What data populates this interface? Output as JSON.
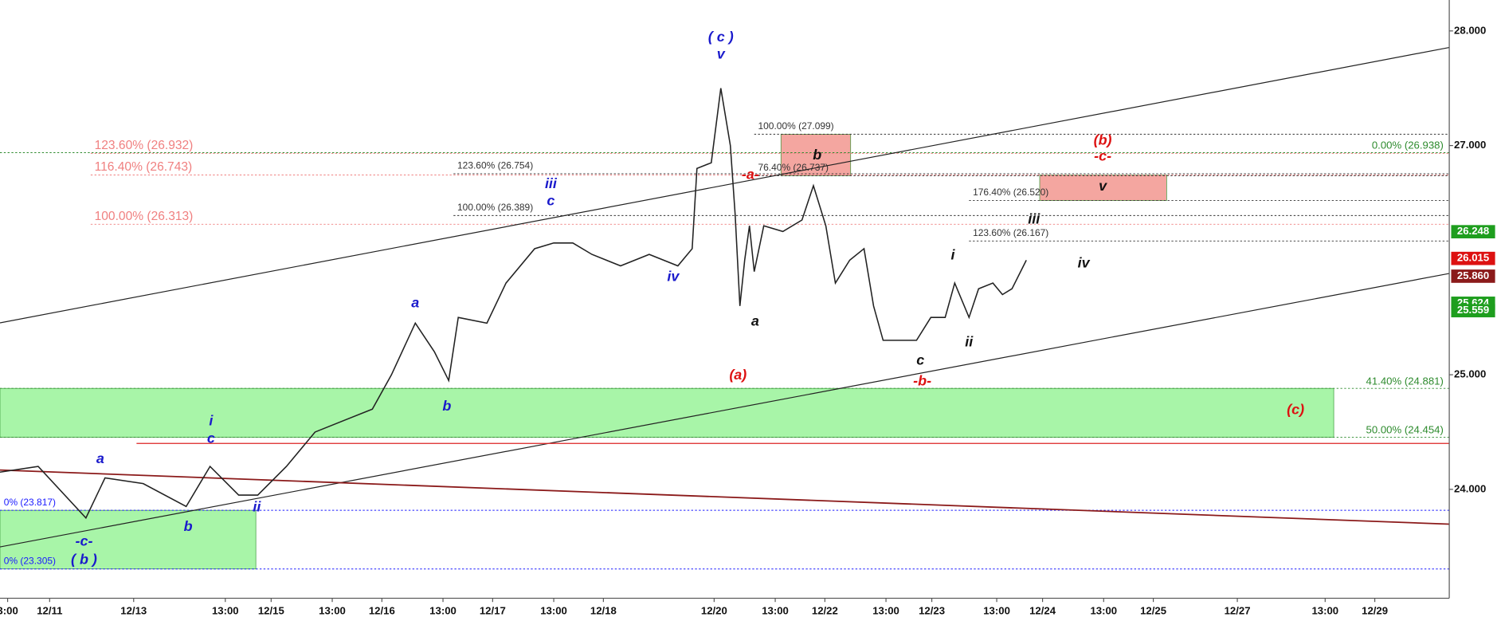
{
  "chart_data": {
    "type": "line",
    "xlim": [
      0,
      379.5
    ],
    "ylim": [
      23.05,
      28.27
    ],
    "xticks": [
      {
        "value": 2,
        "label": "3:00"
      },
      {
        "value": 13,
        "label": "12/11"
      },
      {
        "value": 35,
        "label": "12/13"
      },
      {
        "value": 59,
        "label": "13:00"
      },
      {
        "value": 71,
        "label": "12/15"
      },
      {
        "value": 87,
        "label": "13:00"
      },
      {
        "value": 100,
        "label": "12/16"
      },
      {
        "value": 116,
        "label": "13:00"
      },
      {
        "value": 129,
        "label": "12/17"
      },
      {
        "value": 145,
        "label": "13:00"
      },
      {
        "value": 158,
        "label": "12/18"
      },
      {
        "value": 187,
        "label": "12/20"
      },
      {
        "value": 203,
        "label": "13:00"
      },
      {
        "value": 216,
        "label": "12/22"
      },
      {
        "value": 232,
        "label": "13:00"
      },
      {
        "value": 244,
        "label": "12/23"
      },
      {
        "value": 261,
        "label": "13:00"
      },
      {
        "value": 273,
        "label": "12/24"
      },
      {
        "value": 289,
        "label": "13:00"
      },
      {
        "value": 302,
        "label": "12/25"
      },
      {
        "value": 324,
        "label": "12/27"
      },
      {
        "value": 347,
        "label": "13:00"
      },
      {
        "value": 360,
        "label": "12/29"
      }
    ],
    "yticks": [
      {
        "value": 28,
        "label": "28.000"
      },
      {
        "value": 27,
        "label": "27.000"
      },
      {
        "value": 25,
        "label": "25.000"
      },
      {
        "value": 24,
        "label": "24.000"
      }
    ],
    "price": {
      "color": "#222222",
      "x": [
        0,
        10,
        22.5,
        27.5,
        37.5,
        48.75,
        55,
        62.5,
        67.5,
        75,
        82.5,
        90,
        97.5,
        102.5,
        108.75,
        113.75,
        117.5,
        120,
        127.5,
        132.5,
        140,
        145,
        150,
        155,
        162.5,
        170,
        177.5,
        181.25,
        182.5,
        186.25,
        188.75,
        191.25,
        192.5,
        193.75,
        195,
        196.25,
        197.5,
        200,
        205,
        210,
        213,
        216.25,
        218.75,
        222.5,
        226.25,
        228.75,
        231.25,
        235,
        240,
        243.75,
        247.5,
        250,
        253.75,
        256.25,
        260,
        262.5,
        265,
        268.75
      ],
      "values": [
        24.15,
        24.2,
        23.75,
        24.1,
        24.05,
        23.85,
        24.2,
        23.95,
        23.95,
        24.2,
        24.5,
        24.6,
        24.7,
        25.0,
        25.45,
        25.2,
        24.95,
        25.5,
        25.45,
        25.8,
        26.1,
        26.15,
        26.15,
        26.05,
        25.95,
        26.05,
        25.95,
        26.1,
        26.8,
        26.85,
        27.5,
        27.0,
        26.4,
        25.6,
        26.0,
        26.3,
        25.9,
        26.3,
        26.25,
        26.35,
        26.65,
        26.3,
        25.8,
        26.0,
        26.1,
        25.6,
        25.3,
        25.3,
        25.3,
        25.5,
        25.5,
        25.8,
        25.5,
        25.75,
        25.8,
        25.7,
        25.75,
        26.0
      ]
    },
    "zones": [
      {
        "x1": 0,
        "x2": 349.25,
        "y1": 24.881,
        "y2": 24.454,
        "color": "#a8f5a8"
      },
      {
        "x1": 0,
        "x2": 67,
        "y1": 23.817,
        "y2": 23.305,
        "color": "#a8f5a8"
      },
      {
        "x1": 204.5,
        "x2": 222.75,
        "y1": 27.099,
        "y2": 26.737,
        "color": "#f4a6a0"
      },
      {
        "x1": 272.25,
        "x2": 305.5,
        "y1": 26.743,
        "y2": 26.52,
        "color": "#f4a6a0"
      }
    ],
    "fib_levels": [
      {
        "label": "123.60% (26.932)",
        "value": 26.932,
        "from": 23.75,
        "color": "#f08080",
        "side": "left"
      },
      {
        "label": "116.40% (26.743)",
        "value": 26.743,
        "from": 23.75,
        "color": "#f08080",
        "side": "left"
      },
      {
        "label": "100.00% (26.313)",
        "value": 26.313,
        "from": 23.75,
        "color": "#f08080",
        "side": "left"
      },
      {
        "label": "123.60% (26.754)",
        "value": 26.754,
        "from": 118.75,
        "color": "#333333",
        "side": "left"
      },
      {
        "label": "100.00% (26.389)",
        "value": 26.389,
        "from": 118.75,
        "color": "#333333",
        "side": "left"
      },
      {
        "label": "100.00% (27.099)",
        "value": 27.099,
        "from": 197.5,
        "color": "#333333",
        "side": "left"
      },
      {
        "label": "76.40% (26.737)",
        "value": 26.737,
        "from": 197.5,
        "color": "#333333",
        "side": "left"
      },
      {
        "label": "176.40% (26.520)",
        "value": 26.52,
        "from": 253.75,
        "color": "#333333",
        "side": "left"
      },
      {
        "label": "123.60% (26.167)",
        "value": 26.167,
        "from": 253.75,
        "color": "#333333",
        "side": "left"
      },
      {
        "label": "0.00% (26.938)",
        "value": 26.938,
        "from": 0,
        "color": "#2e8b2e",
        "side": "right"
      },
      {
        "label": "41.40% (24.881)",
        "value": 24.881,
        "from": 0,
        "color": "#2e8b2e",
        "side": "right"
      },
      {
        "label": "50.00% (24.454)",
        "value": 24.454,
        "from": 0,
        "color": "#2e8b2e",
        "side": "right"
      },
      {
        "label": "0% (23.817)",
        "value": 23.817,
        "from": 0,
        "color": "#1a1aff",
        "side": "left"
      },
      {
        "label": "0% (23.305)",
        "value": 23.305,
        "from": 0,
        "color": "#1a1aff",
        "side": "left"
      }
    ],
    "annotations": [
      {
        "text": "( c )",
        "x": 188.75,
        "y": 27.94,
        "color": "#1a1acc"
      },
      {
        "text": "v",
        "x": 188.75,
        "y": 27.79,
        "color": "#1a1acc"
      },
      {
        "text": "iii",
        "x": 144.25,
        "y": 26.66,
        "color": "#1a1acc"
      },
      {
        "text": "c",
        "x": 144.25,
        "y": 26.51,
        "color": "#1a1acc"
      },
      {
        "text": "iv",
        "x": 176.25,
        "y": 25.85,
        "color": "#1a1acc"
      },
      {
        "text": "a",
        "x": 108.75,
        "y": 25.62,
        "color": "#1a1acc"
      },
      {
        "text": "b",
        "x": 117,
        "y": 24.72,
        "color": "#1a1acc"
      },
      {
        "text": "i",
        "x": 55.25,
        "y": 24.59,
        "color": "#1a1acc"
      },
      {
        "text": "c",
        "x": 55.25,
        "y": 24.44,
        "color": "#1a1acc"
      },
      {
        "text": "a",
        "x": 26.25,
        "y": 24.26,
        "color": "#1a1acc"
      },
      {
        "text": "b",
        "x": 49.25,
        "y": 23.67,
        "color": "#1a1acc"
      },
      {
        "text": "ii",
        "x": 67.25,
        "y": 23.84,
        "color": "#1a1acc"
      },
      {
        "text": "-c-",
        "x": 22,
        "y": 23.54,
        "color": "#1a1acc"
      },
      {
        "text": "( b )",
        "x": 22,
        "y": 23.38,
        "color": "#1a1acc"
      },
      {
        "text": "(a)",
        "x": 193.25,
        "y": 24.99,
        "color": "#dd1111"
      },
      {
        "text": "-a-",
        "x": 196.5,
        "y": 26.74,
        "color": "#dd1111"
      },
      {
        "text": "a",
        "x": 197.75,
        "y": 25.46,
        "color": "#111111"
      },
      {
        "text": "b",
        "x": 214,
        "y": 26.91,
        "color": "#111111"
      },
      {
        "text": "i",
        "x": 249.5,
        "y": 26.04,
        "color": "#111111"
      },
      {
        "text": "ii",
        "x": 253.75,
        "y": 25.28,
        "color": "#111111"
      },
      {
        "text": "c",
        "x": 241,
        "y": 25.12,
        "color": "#111111"
      },
      {
        "text": "-b-",
        "x": 241.5,
        "y": 24.94,
        "color": "#dd1111"
      },
      {
        "text": "iii",
        "x": 270.75,
        "y": 26.35,
        "color": "#111111"
      },
      {
        "text": "iv",
        "x": 283.75,
        "y": 25.97,
        "color": "#111111"
      },
      {
        "text": "v",
        "x": 288.75,
        "y": 26.64,
        "color": "#111111"
      },
      {
        "text": "(b)",
        "x": 288.75,
        "y": 27.04,
        "color": "#dd1111"
      },
      {
        "text": "-c-",
        "x": 288.75,
        "y": 26.9,
        "color": "#dd1111"
      },
      {
        "text": "(c)",
        "x": 339.25,
        "y": 24.69,
        "color": "#dd1111"
      }
    ],
    "price_tags": [
      {
        "value": 26.248,
        "label": "26.248",
        "color": "#1e9e1e"
      },
      {
        "value": 26.015,
        "label": "26.015",
        "color": "#dd1111"
      },
      {
        "value": 25.86,
        "label": "25.860",
        "color": "#8b1a1a"
      },
      {
        "value": 25.624,
        "label": "25.624",
        "color": "#1e9e1e"
      },
      {
        "value": 25.559,
        "label": "25.559",
        "color": "#1e9e1e"
      }
    ]
  }
}
